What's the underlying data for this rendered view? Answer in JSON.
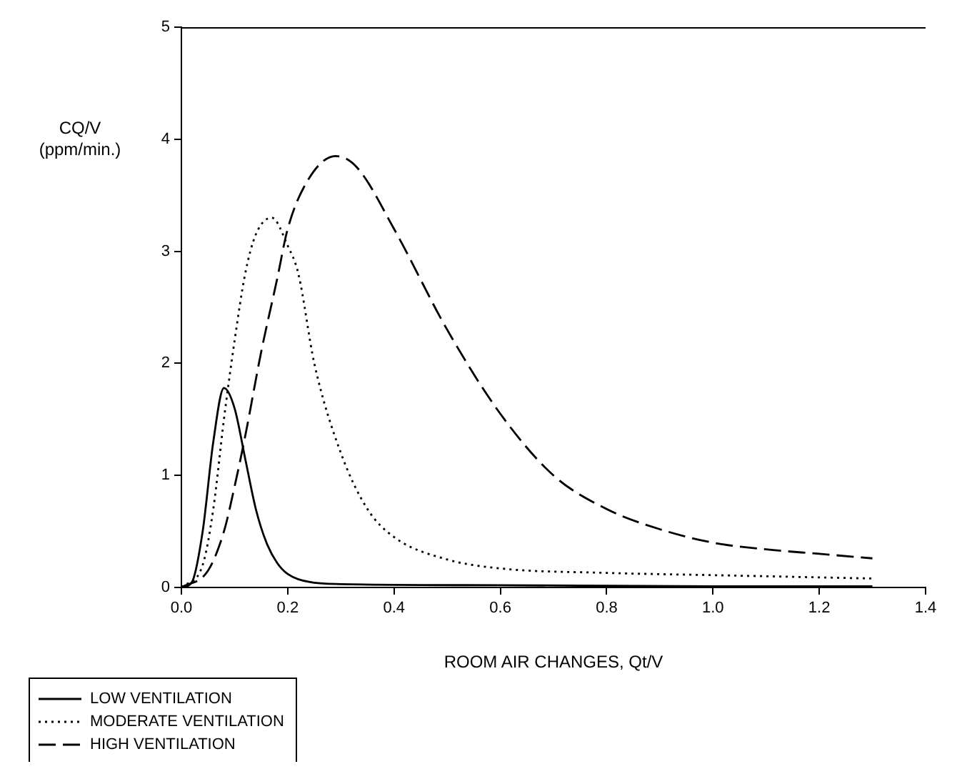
{
  "chart_data": {
    "type": "line",
    "xlabel": "ROOM AIR CHANGES, Qt/V",
    "ylabel": "CQ/V (ppm/min.)",
    "xlim": [
      0,
      1.4
    ],
    "xticks": [
      {
        "value": 0,
        "label": "0.0"
      },
      {
        "value": 0.2,
        "label": "0.2"
      },
      {
        "value": 0.4,
        "label": "0.4"
      },
      {
        "value": 0.6,
        "label": "0.6"
      },
      {
        "value": 0.8,
        "label": "0.8"
      },
      {
        "value": 1,
        "label": "1.0"
      },
      {
        "value": 1.2,
        "label": "1.2"
      },
      {
        "value": 1.4,
        "label": "1.4"
      }
    ],
    "ylim": [
      0,
      5
    ],
    "yticks": [
      0,
      1,
      2,
      3,
      4,
      5
    ],
    "grid": false,
    "legend": "bottom left",
    "marker": "none",
    "series": [
      {
        "name": "LOW VENTILATION",
        "color": "#000000",
        "line_style": "solid",
        "x": [
          0,
          0.02,
          0.04,
          0.06,
          0.08,
          0.1,
          0.12,
          0.14,
          0.16,
          0.18,
          0.2,
          0.24,
          0.3,
          0.6,
          1.0,
          1.3
        ],
        "values": [
          0,
          0.05,
          0.5,
          1.3,
          1.78,
          1.6,
          1.15,
          0.7,
          0.4,
          0.22,
          0.12,
          0.05,
          0.03,
          0.02,
          0.01,
          0.01
        ]
      },
      {
        "name": "MODERATE VENTILATION",
        "color": "#000000",
        "line_style": "dotted",
        "x": [
          0,
          0.04,
          0.06,
          0.08,
          0.1,
          0.12,
          0.14,
          0.17,
          0.2,
          0.22,
          0.25,
          0.3,
          0.35,
          0.4,
          0.5,
          0.6,
          0.8,
          1.0,
          1.3
        ],
        "values": [
          0,
          0.2,
          0.7,
          1.5,
          2.2,
          2.8,
          3.15,
          3.3,
          3.05,
          2.8,
          2.0,
          1.2,
          0.7,
          0.45,
          0.25,
          0.17,
          0.13,
          0.11,
          0.08
        ]
      },
      {
        "name": "HIGH VENTILATION",
        "color": "#000000",
        "line_style": "dashed",
        "x": [
          0,
          0.05,
          0.08,
          0.1,
          0.12,
          0.15,
          0.18,
          0.2,
          0.24,
          0.29,
          0.33,
          0.4,
          0.5,
          0.6,
          0.7,
          0.8,
          0.9,
          1.0,
          1.1,
          1.2,
          1.3
        ],
        "values": [
          0,
          0.15,
          0.5,
          0.9,
          1.35,
          2.1,
          2.75,
          3.2,
          3.65,
          3.85,
          3.75,
          3.2,
          2.3,
          1.55,
          1.0,
          0.7,
          0.52,
          0.4,
          0.34,
          0.3,
          0.26
        ]
      }
    ]
  }
}
